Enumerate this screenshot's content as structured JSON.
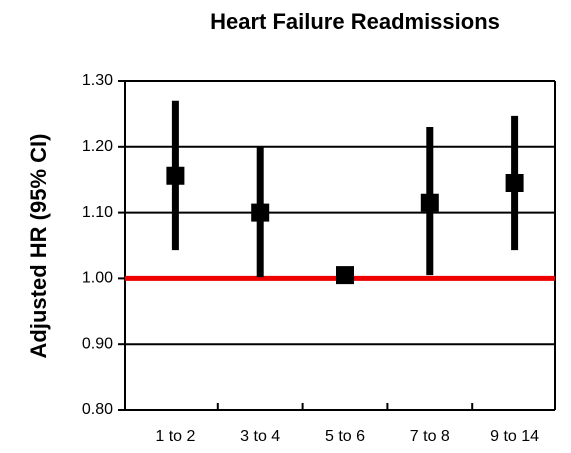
{
  "chart_data": {
    "type": "errorbar",
    "title": "Heart Failure Readmissions",
    "y_label": "Adjusted HR (95% CI)",
    "categories": [
      "1 to 2",
      "3 to 4",
      "5 to 6",
      "7 to 8",
      "9 to 14"
    ],
    "series": [
      {
        "values": [
          1.156,
          1.1,
          1.005,
          1.115,
          1.145
        ],
        "lower": [
          1.043,
          1.002,
          1.005,
          1.005,
          1.043
        ],
        "upper": [
          1.27,
          1.2,
          1.005,
          1.23,
          1.247
        ],
        "color": "#000000"
      }
    ],
    "ylim": [
      0.8,
      1.3
    ],
    "yticks": [
      {
        "value": 0.8,
        "label": "0.80"
      },
      {
        "value": 0.9,
        "label": "0.90"
      },
      {
        "value": 1.0,
        "label": "1.00"
      },
      {
        "value": 1.1,
        "label": "1.10"
      },
      {
        "value": 1.2,
        "label": "1.20"
      },
      {
        "value": 1.3,
        "label": "1.30"
      }
    ],
    "grid": true,
    "grid_color": "#000000",
    "reference_line": {
      "value": 1.0,
      "color": "#ee0000"
    }
  }
}
